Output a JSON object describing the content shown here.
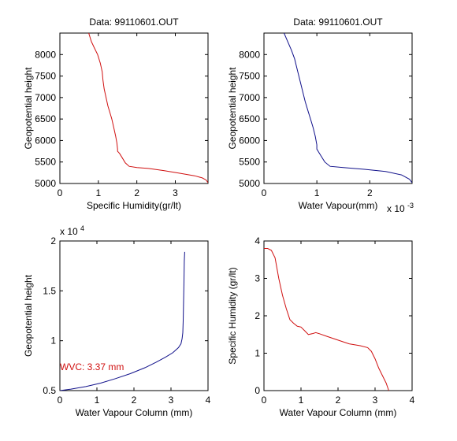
{
  "chart_data": [
    {
      "type": "line",
      "title": "Data: 99110601.OUT",
      "xlabel": "Specific Humidity(gr/lt)",
      "ylabel": "Geopotential height",
      "xlim": [
        0,
        3.85
      ],
      "ylim": [
        5000,
        8500
      ],
      "xticks": [
        0,
        1,
        2,
        3
      ],
      "yticks": [
        5000,
        5500,
        6000,
        6500,
        7000,
        7500,
        8000
      ],
      "exponent_label": "",
      "color": "#d01010",
      "series": [
        {
          "x": [
            0.75,
            0.82,
            0.9,
            0.98,
            1.05,
            1.1,
            1.12,
            1.15,
            1.2,
            1.25,
            1.3,
            1.35,
            1.4,
            1.45,
            1.48,
            1.5,
            1.5,
            1.55,
            1.62,
            1.7,
            1.8,
            2.0,
            2.3,
            2.7,
            3.1,
            3.5,
            3.7,
            3.8,
            3.85
          ],
          "y": [
            8500,
            8300,
            8150,
            8000,
            7800,
            7600,
            7400,
            7200,
            7000,
            6800,
            6650,
            6500,
            6300,
            6100,
            5950,
            5800,
            5750,
            5700,
            5600,
            5480,
            5400,
            5370,
            5350,
            5300,
            5240,
            5180,
            5130,
            5080,
            5020
          ]
        }
      ]
    },
    {
      "type": "line",
      "title": "Data: 99110601.OUT",
      "xlabel": "Water Vapour(mm)",
      "ylabel": "Geopotential height",
      "xlim": [
        0,
        2.8
      ],
      "ylim": [
        5000,
        8500
      ],
      "xticks": [
        0,
        1,
        2
      ],
      "yticks": [
        5000,
        5500,
        6000,
        6500,
        7000,
        7500,
        8000
      ],
      "exponent_label": "x 10",
      "exponent_power": "-3",
      "color": "#10108a",
      "series": [
        {
          "x": [
            0.38,
            0.45,
            0.52,
            0.58,
            0.62,
            0.66,
            0.7,
            0.74,
            0.78,
            0.83,
            0.88,
            0.93,
            0.97,
            1.0,
            1.0,
            1.04,
            1.08,
            1.15,
            1.25,
            1.5,
            1.9,
            2.3,
            2.6,
            2.75,
            2.8
          ],
          "y": [
            8500,
            8300,
            8100,
            7900,
            7700,
            7500,
            7300,
            7100,
            6900,
            6700,
            6500,
            6300,
            6100,
            5900,
            5800,
            5720,
            5640,
            5500,
            5400,
            5370,
            5330,
            5280,
            5200,
            5100,
            5020
          ]
        }
      ]
    },
    {
      "type": "line",
      "title": "",
      "xlabel": "Water Vapour Column (mm)",
      "ylabel": "Geopotential height",
      "xlim": [
        0,
        4
      ],
      "ylim": [
        0.5,
        2
      ],
      "xticks": [
        0,
        1,
        2,
        3,
        4
      ],
      "yticks": [
        0.5,
        1,
        1.5,
        2
      ],
      "exponent_label": "x 10",
      "exponent_power": "4",
      "color": "#10108a",
      "annotation": "WVC: 3.37 mm",
      "annotation_color": "#d01010",
      "series": [
        {
          "x": [
            0.0,
            0.3,
            0.7,
            1.1,
            1.5,
            1.9,
            2.3,
            2.6,
            2.85,
            3.05,
            3.2,
            3.27,
            3.3,
            3.32,
            3.33,
            3.34,
            3.35,
            3.36,
            3.37
          ],
          "y": [
            0.5,
            0.515,
            0.54,
            0.575,
            0.62,
            0.67,
            0.73,
            0.785,
            0.835,
            0.88,
            0.93,
            0.97,
            1.02,
            1.08,
            1.2,
            1.4,
            1.6,
            1.8,
            1.89
          ]
        }
      ]
    },
    {
      "type": "line",
      "title": "",
      "xlabel": "Water Vapour Column (mm)",
      "ylabel": "Specific Humidity (gr/lt)",
      "xlim": [
        0,
        4
      ],
      "ylim": [
        0,
        4
      ],
      "xticks": [
        0,
        1,
        2,
        3,
        4
      ],
      "yticks": [
        0,
        1,
        2,
        3,
        4
      ],
      "exponent_label": "",
      "color": "#d01010",
      "series": [
        {
          "x": [
            0.0,
            0.1,
            0.2,
            0.3,
            0.4,
            0.5,
            0.6,
            0.7,
            0.8,
            0.9,
            1.0,
            1.1,
            1.2,
            1.3,
            1.4,
            1.5,
            1.7,
            2.0,
            2.3,
            2.6,
            2.8,
            2.9,
            3.0,
            3.1,
            3.2,
            3.3,
            3.37
          ],
          "y": [
            3.8,
            3.8,
            3.75,
            3.55,
            3.0,
            2.55,
            2.2,
            1.9,
            1.8,
            1.72,
            1.7,
            1.6,
            1.5,
            1.52,
            1.55,
            1.52,
            1.45,
            1.35,
            1.25,
            1.2,
            1.15,
            1.05,
            0.85,
            0.6,
            0.4,
            0.2,
            0.0
          ]
        }
      ]
    }
  ]
}
